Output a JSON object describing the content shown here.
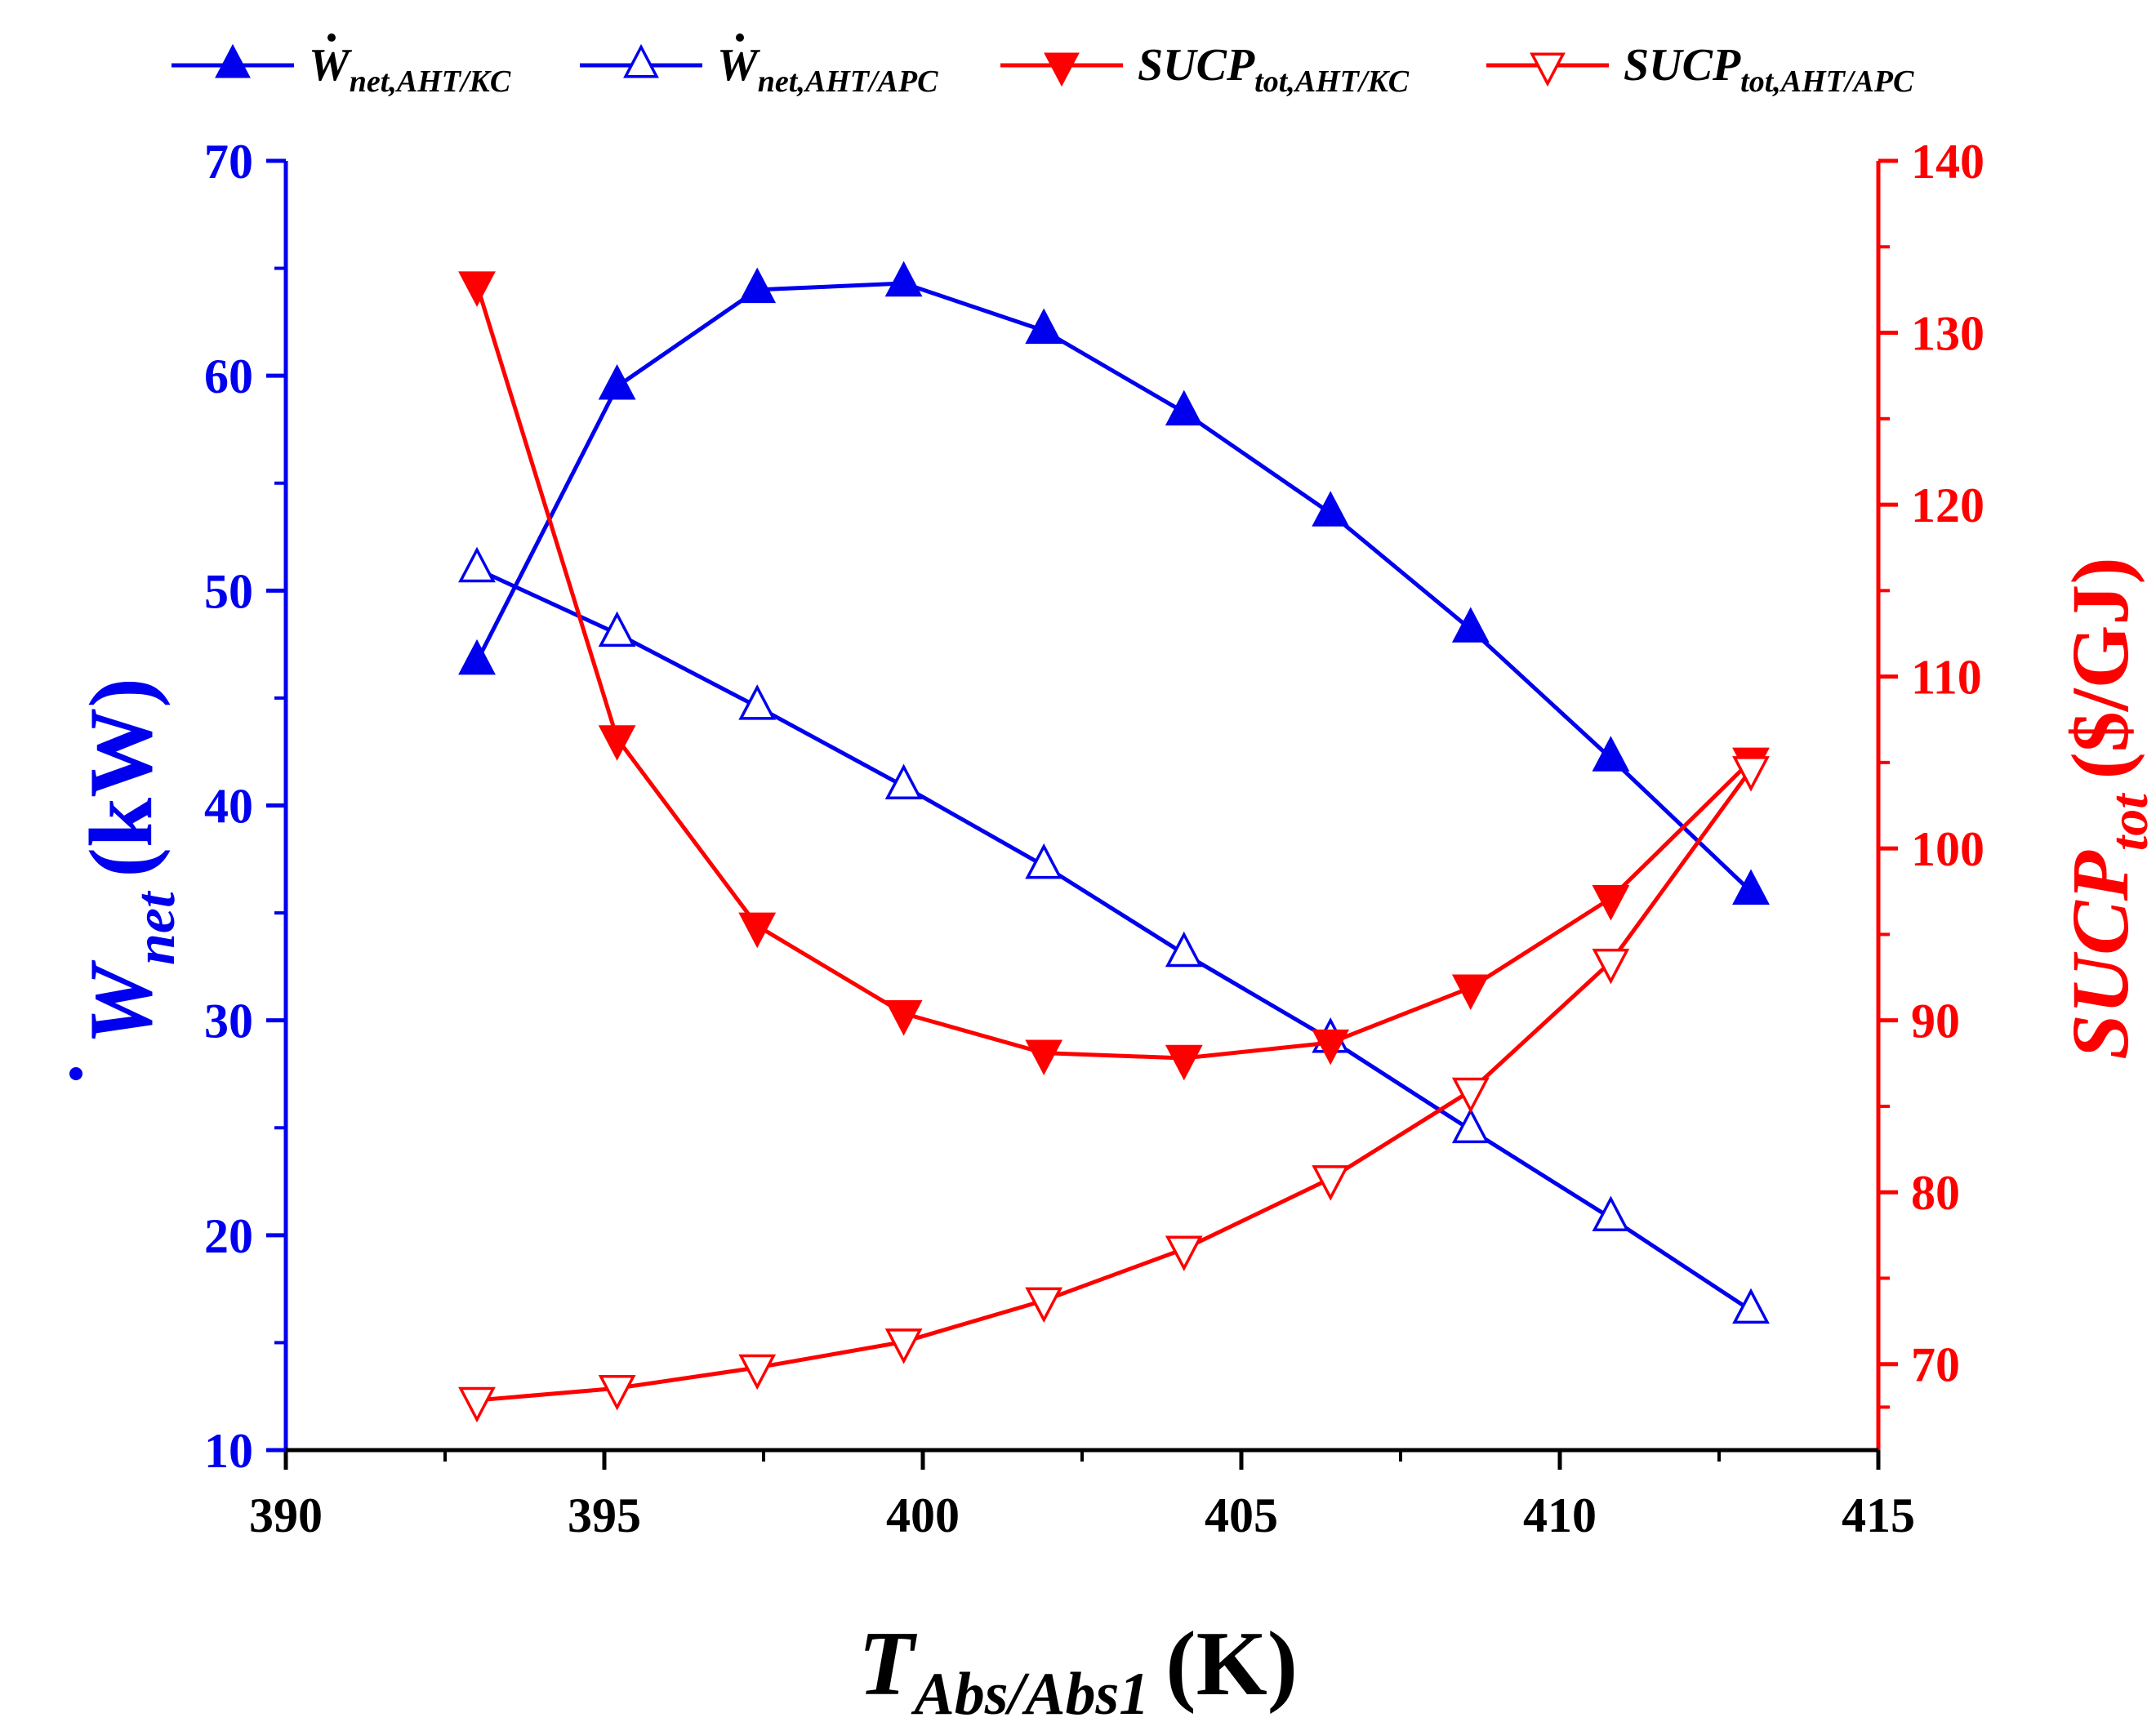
{
  "chart_data": {
    "type": "line",
    "x": [
      393.0,
      395.2,
      397.4,
      399.7,
      401.9,
      404.1,
      406.4,
      408.6,
      410.8,
      413.0
    ],
    "x_axis": {
      "label_main": "T",
      "label_sub": "Abs/Abs1",
      "label_unit": "(K)",
      "range": [
        390,
        415
      ],
      "major_ticks": [
        390,
        395,
        400,
        405,
        410,
        415
      ],
      "tick_labels": [
        "390",
        "395",
        "400",
        "405",
        "410",
        "415"
      ]
    },
    "y_left": {
      "label_main": "W",
      "label_sub": "net",
      "label_unit": "(kW)",
      "range": [
        10,
        70
      ],
      "major_ticks": [
        10,
        20,
        30,
        40,
        50,
        60,
        70
      ],
      "tick_labels": [
        "10",
        "20",
        "30",
        "40",
        "50",
        "60",
        "70"
      ],
      "color": "#0000ee"
    },
    "y_right": {
      "label_main": "SUCP",
      "label_sub": "tot",
      "label_unit": "($/GJ)",
      "range": [
        65,
        140
      ],
      "major_ticks": [
        70,
        80,
        90,
        100,
        110,
        120,
        130,
        140
      ],
      "tick_labels": [
        "70",
        "80",
        "90",
        "100",
        "110",
        "120",
        "130",
        "140"
      ],
      "color": "#ff0000"
    },
    "series": [
      {
        "name_main": "W",
        "name_sub": "net,AHT/KC",
        "axis": "left",
        "marker": "triangle-up",
        "filled": true,
        "color": "#0000ee",
        "values": [
          46.7,
          59.5,
          64.0,
          64.3,
          62.1,
          58.3,
          53.6,
          48.2,
          42.2,
          36.0
        ]
      },
      {
        "name_main": "W",
        "name_sub": "net,AHT/APC",
        "axis": "left",
        "marker": "triangle-up",
        "filled": false,
        "color": "#0000ee",
        "values": [
          51.0,
          48.0,
          44.6,
          40.9,
          37.2,
          33.1,
          29.1,
          24.9,
          20.8,
          16.5
        ]
      },
      {
        "name_main": "SUCP",
        "name_sub": "tot,AHT/KC",
        "axis": "right",
        "marker": "triangle-down",
        "filled": true,
        "color": "#ff0000",
        "values": [
          132.8,
          106.4,
          95.5,
          90.4,
          88.1,
          87.8,
          88.7,
          91.9,
          97.1,
          105.1
        ]
      },
      {
        "name_main": "SUCP",
        "name_sub": "tot,AHT/APC",
        "axis": "right",
        "marker": "triangle-down",
        "filled": false,
        "color": "#ff0000",
        "values": [
          67.9,
          68.6,
          69.8,
          71.3,
          73.7,
          76.7,
          80.8,
          85.9,
          93.4,
          104.6
        ]
      }
    ],
    "legend_position": "top"
  }
}
